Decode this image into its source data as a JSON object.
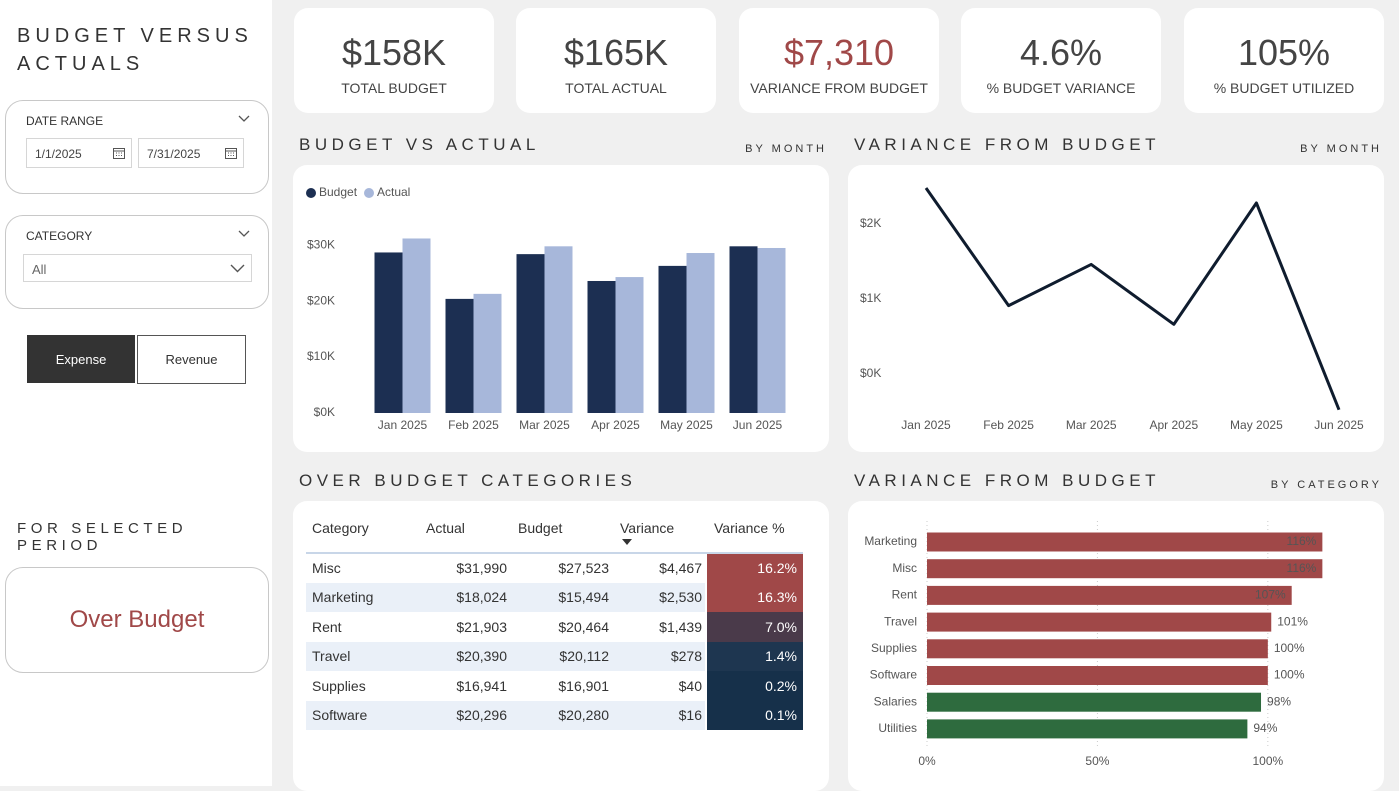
{
  "sidebar": {
    "title": "BUDGET VERSUS ACTUALS",
    "date_range": {
      "label": "DATE RANGE",
      "start": "1/1/2025",
      "end": "7/31/2025"
    },
    "category": {
      "label": "CATEGORY",
      "value": "All"
    },
    "buttons": [
      "Expense",
      "Revenue"
    ],
    "period_label": "FOR SELECTED PERIOD",
    "status": "Over Budget"
  },
  "kpis": [
    {
      "value": "$158K",
      "label": "TOTAL BUDGET",
      "color": "#444444"
    },
    {
      "value": "$165K",
      "label": "TOTAL ACTUAL",
      "color": "#444444"
    },
    {
      "value": "$7,310",
      "label": "VARIANCE FROM BUDGET",
      "color": "#a04848"
    },
    {
      "value": "4.6%",
      "label": "% BUDGET VARIANCE",
      "color": "#444444"
    },
    {
      "value": "105%",
      "label": "% BUDGET UTILIZED",
      "color": "#444444"
    }
  ],
  "table": {
    "title": "OVER BUDGET CATEGORIES",
    "columns": [
      "Category",
      "Actual",
      "Budget",
      "Variance",
      "Variance %"
    ],
    "rows": [
      [
        "Misc",
        "$31,990",
        "$27,523",
        "$4,467",
        "16.2%"
      ],
      [
        "Marketing",
        "$18,024",
        "$15,494",
        "$2,530",
        "16.3%"
      ],
      [
        "Rent",
        "$21,903",
        "$20,464",
        "$1,439",
        "7.0%"
      ],
      [
        "Travel",
        "$20,390",
        "$20,112",
        "$278",
        "1.4%"
      ],
      [
        "Supplies",
        "$16,941",
        "$16,901",
        "$40",
        "0.2%"
      ],
      [
        "Software",
        "$20,296",
        "$20,280",
        "$16",
        "0.1%"
      ]
    ],
    "variance_colors": [
      "#a04848",
      "#a04848",
      "#4a3a4a",
      "#1e3650",
      "#16304a",
      "#16304a"
    ]
  },
  "chart_data": [
    {
      "type": "bar",
      "title": "BUDGET VS ACTUAL",
      "subtitle": "BY MONTH",
      "categories": [
        "Jan 2025",
        "Feb 2025",
        "Mar 2025",
        "Apr 2025",
        "May 2025",
        "Jun 2025"
      ],
      "series": [
        {
          "name": "Budget",
          "color": "#1c2f52",
          "values": [
            28700,
            20400,
            28400,
            23600,
            26300,
            29800
          ]
        },
        {
          "name": "Actual",
          "color": "#a7b7da",
          "values": [
            31200,
            21300,
            29800,
            24300,
            28600,
            29500
          ]
        }
      ],
      "ylim": [
        0,
        32000
      ],
      "yticks": [
        {
          "value": 0,
          "label": "$0K"
        },
        {
          "value": 10000,
          "label": "$10K"
        },
        {
          "value": 20000,
          "label": "$20K"
        },
        {
          "value": 30000,
          "label": "$30K"
        }
      ],
      "grid": false
    },
    {
      "type": "line",
      "title": "VARIANCE FROM BUDGET",
      "subtitle": "BY MONTH",
      "categories": [
        "Jan 2025",
        "Feb 2025",
        "Mar 2025",
        "Apr 2025",
        "May 2025",
        "Jun 2025"
      ],
      "values": [
        2480,
        910,
        1460,
        660,
        2280,
        -480
      ],
      "color": "#0f1c2e",
      "ylim": [
        -550,
        2600
      ],
      "yticks": [
        {
          "value": 0,
          "label": "$0K"
        },
        {
          "value": 1000,
          "label": "$1K"
        },
        {
          "value": 2000,
          "label": "$2K"
        }
      ],
      "grid": false
    },
    {
      "type": "hbar",
      "title": "VARIANCE FROM BUDGET",
      "subtitle": "BY CATEGORY",
      "categories": [
        "Marketing",
        "Misc",
        "Rent",
        "Travel",
        "Supplies",
        "Software",
        "Salaries",
        "Utilities"
      ],
      "values": [
        116,
        116,
        107,
        101,
        100,
        100,
        98,
        94
      ],
      "value_labels": [
        "116%",
        "116%",
        "107%",
        "101%",
        "100%",
        "100%",
        "98%",
        "94%"
      ],
      "colors": [
        "#a04848",
        "#a04848",
        "#a04848",
        "#a04848",
        "#a04848",
        "#a04848",
        "#2e6b3e",
        "#2e6b3e"
      ],
      "xlim": [
        0,
        120
      ],
      "xticks": [
        {
          "value": 0,
          "label": "0%"
        },
        {
          "value": 50,
          "label": "50%"
        },
        {
          "value": 100,
          "label": "100%"
        }
      ],
      "grid": true
    }
  ]
}
